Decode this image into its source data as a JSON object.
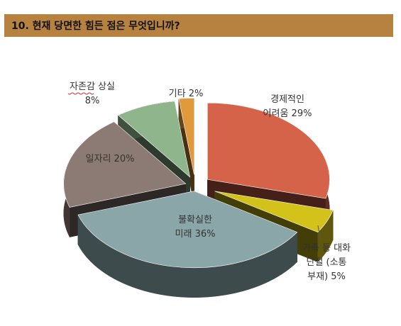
{
  "header": {
    "title": "10. 현재 당면한 힘든 점은 무엇입니까?"
  },
  "chart_data": {
    "type": "pie",
    "style": "3d-exploded",
    "title": "10. 현재 당면한 힘든 점은 무엇입니까?",
    "slices": [
      {
        "name": "경제적인 어려움",
        "value": 29,
        "label_lines": [
          "경제적인",
          "어려움 29%"
        ],
        "color": "#d4634a"
      },
      {
        "name": "가족 등 대화 단절 (소통 부재)",
        "value": 5,
        "label_lines": [
          "가족 등 대화",
          "단절 (소통",
          "부재) 5%"
        ],
        "color": "#d2c21a"
      },
      {
        "name": "불확실한 미래",
        "value": 36,
        "label_lines": [
          "불확실한",
          "미래 36%"
        ],
        "color": "#8aa6a8"
      },
      {
        "name": "일자리",
        "value": 20,
        "label_lines": [
          "일자리 20%"
        ],
        "color": "#8c7a74"
      },
      {
        "name": "자존감 상실",
        "value": 8,
        "label_lines": [
          "자존감 상실",
          "8%"
        ],
        "color": "#8fb58c"
      },
      {
        "name": "기타",
        "value": 2,
        "label_lines": [
          "기타 2%"
        ],
        "color": "#e09a3c"
      }
    ]
  }
}
